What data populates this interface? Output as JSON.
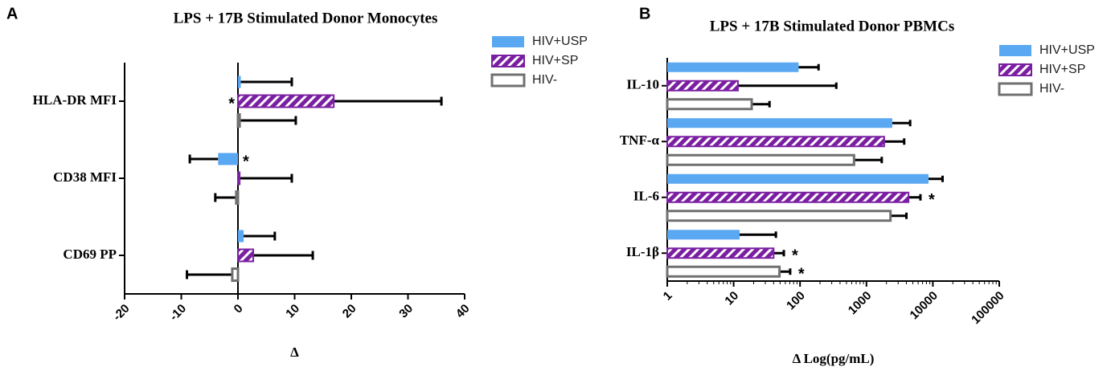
{
  "chart_data": [
    {
      "type": "hbar",
      "panel": "A",
      "title": "LPS + 17B Stimulated Donor Monocytes",
      "xlabel": "Δ",
      "categories": [
        "HLA-DR MFI",
        "CD38 MFI",
        "CD69 PP"
      ],
      "xlim": [
        -20,
        40
      ],
      "xticks": [
        -20,
        -10,
        0,
        10,
        20,
        30,
        40
      ],
      "xscale": "linear",
      "series": [
        {
          "name": "HIV+USP",
          "color": "#5aa7f2",
          "style": "solid",
          "values": [
            0.5,
            -3.5,
            1
          ],
          "errors": [
            9,
            5,
            5.5
          ],
          "annotations": [
            null,
            "*",
            null
          ]
        },
        {
          "name": "HIV+SP",
          "color": "#7b1fa2",
          "style": "hatch",
          "values": [
            16.9,
            0.3,
            2.7
          ],
          "errors": [
            19,
            9.2,
            10.5
          ],
          "annotations": [
            "*",
            null,
            null
          ]
        },
        {
          "name": "HIV-",
          "color": "#707070",
          "style": "outline",
          "values": [
            0.3,
            -0.3,
            -1
          ],
          "errors": [
            9.9,
            3.7,
            8
          ],
          "annotations": [
            null,
            null,
            null
          ]
        }
      ]
    },
    {
      "type": "hbar",
      "panel": "B",
      "title": "LPS + 17B Stimulated Donor PBMCs",
      "xlabel": "Δ Log(pg/mL)",
      "categories": [
        "IL-10",
        "TNF-α",
        "IL-6",
        "IL-1β"
      ],
      "xlim": [
        1,
        100000
      ],
      "xticks": [
        1,
        10,
        100,
        1000,
        10000,
        100000
      ],
      "xscale": "log",
      "series": [
        {
          "name": "HIV+USP",
          "color": "#5aa7f2",
          "style": "solid",
          "values": [
            95,
            2450,
            8600,
            12.3
          ],
          "errors": [
            95,
            2100,
            5400,
            31
          ],
          "annotations": [
            null,
            null,
            null,
            null
          ]
        },
        {
          "name": "HIV+SP",
          "color": "#7b1fa2",
          "style": "hatch",
          "values": [
            11.6,
            1850,
            4300,
            40
          ],
          "errors": [
            340,
            1850,
            2200,
            17
          ],
          "annotations": [
            null,
            null,
            "*",
            "*"
          ]
        },
        {
          "name": "HIV-",
          "color": "#707070",
          "style": "outline",
          "values": [
            18.7,
            650,
            2300,
            49
          ],
          "errors": [
            16,
            1050,
            1700,
            22
          ],
          "annotations": [
            null,
            null,
            null,
            "*"
          ]
        }
      ]
    }
  ]
}
